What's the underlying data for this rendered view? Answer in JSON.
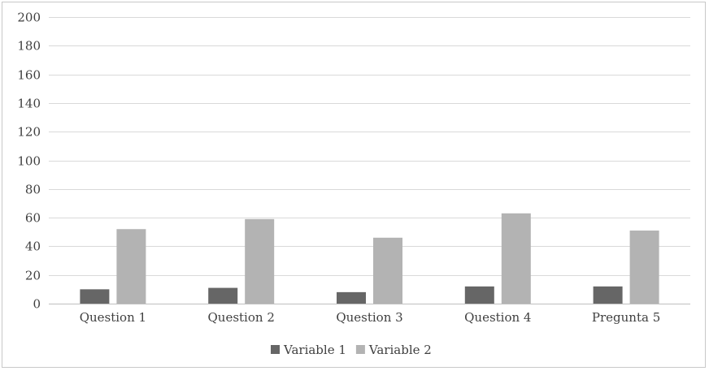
{
  "chart_data": {
    "type": "bar",
    "categories": [
      "Question 1",
      "Question 2",
      "Question 3",
      "Question 4",
      "Pregunta 5"
    ],
    "series": [
      {
        "name": "Variable 1",
        "values": [
          10,
          11,
          8,
          12,
          12
        ],
        "color": "#666666"
      },
      {
        "name": "Variable 2",
        "values": [
          52,
          59,
          46,
          63,
          51
        ],
        "color": "#b3b3b3"
      }
    ],
    "ylim": [
      0,
      200
    ],
    "yticks": [
      0,
      20,
      40,
      60,
      80,
      100,
      120,
      140,
      160,
      180,
      200
    ],
    "grid": true,
    "legend": "bottom-center",
    "title": "",
    "xlabel": "",
    "ylabel": ""
  }
}
